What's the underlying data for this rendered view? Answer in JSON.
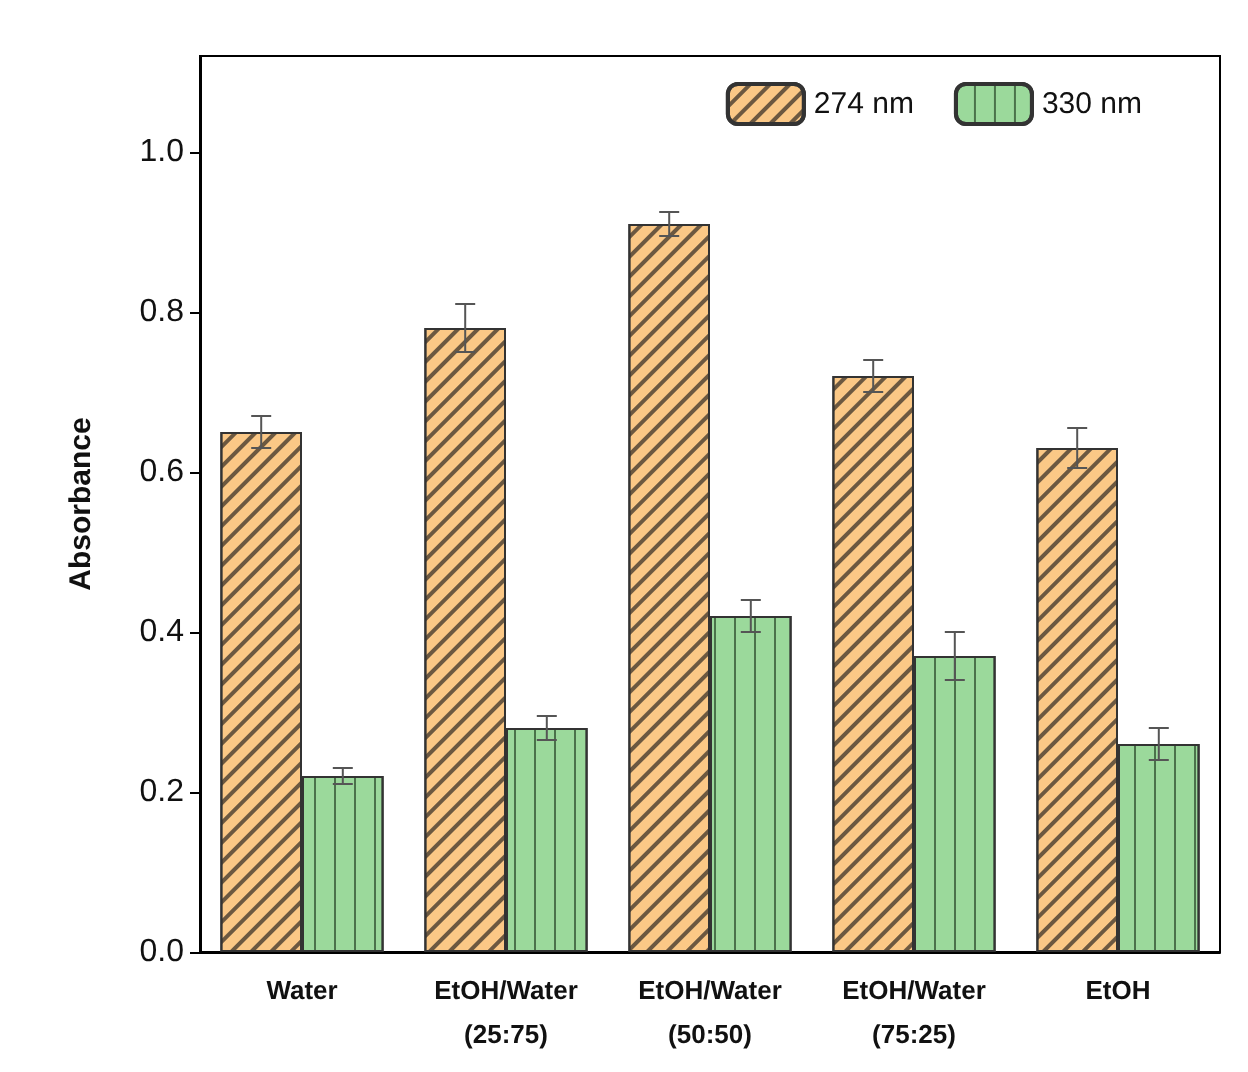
{
  "chart_data": {
    "type": "bar",
    "ylabel": "Absorbance",
    "categories": [
      "Water",
      "EtOH/Water\n(25:75)",
      "EtOH/Water\n(50:50)",
      "EtOH/Water\n(75:25)",
      "EtOH"
    ],
    "series": [
      {
        "name": "274 nm",
        "color": "#fbc886",
        "values": [
          0.65,
          0.78,
          0.91,
          0.72,
          0.63
        ],
        "errors": [
          0.02,
          0.03,
          0.015,
          0.02,
          0.025
        ]
      },
      {
        "name": "330 nm",
        "color": "#9bd99b",
        "values": [
          0.22,
          0.28,
          0.42,
          0.37,
          0.26
        ],
        "errors": [
          0.01,
          0.015,
          0.02,
          0.03,
          0.02
        ]
      }
    ],
    "ylim": [
      0,
      1.12
    ],
    "yticks": [
      {
        "value": 0,
        "label": "0.0"
      },
      {
        "value": 0.2,
        "label": "0.2"
      },
      {
        "value": 0.4,
        "label": "0.4"
      },
      {
        "value": 0.6,
        "label": "0.6"
      },
      {
        "value": 0.8,
        "label": "0.8"
      },
      {
        "value": 1,
        "label": "1.0"
      }
    ],
    "legend": "top right",
    "grid": false
  }
}
